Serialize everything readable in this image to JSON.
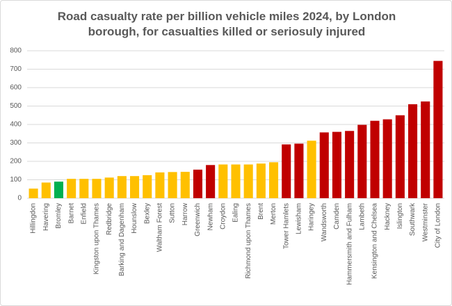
{
  "chart_data": {
    "type": "bar",
    "title": "Road casualty rate per billion vehicle miles 2024, by London borough, for casualties killed or seriosuly injured",
    "categories": [
      "Hillingdon",
      "Havering",
      "Bromley",
      "Barnet",
      "Enfield",
      "Kingston upon Thames",
      "Redbridge",
      "Barking and Dagenham",
      "Hounslow",
      "Bexley",
      "Waltham Forest",
      "Sutton",
      "Harrow",
      "Greenwich",
      "Newham",
      "Croydon",
      "Ealing",
      "Richmond upon Thames",
      "Brent",
      "Merton",
      "Tower Hamlets",
      "Lewisham",
      "Haringey",
      "Wandsworth",
      "Camden",
      "Hammersmith and Fulham",
      "Lambeth",
      "Kensington and Chelsea",
      "Hackney",
      "Islington",
      "Southwark",
      "Westminster",
      "City of London"
    ],
    "values": [
      52,
      85,
      90,
      105,
      105,
      105,
      112,
      120,
      120,
      125,
      140,
      142,
      143,
      155,
      180,
      183,
      183,
      183,
      188,
      195,
      292,
      296,
      312,
      357,
      360,
      365,
      398,
      420,
      428,
      450,
      510,
      525,
      745
    ],
    "colors": [
      "#ffc000",
      "#ffc000",
      "#00b050",
      "#ffc000",
      "#ffc000",
      "#ffc000",
      "#ffc000",
      "#ffc000",
      "#ffc000",
      "#ffc000",
      "#ffc000",
      "#ffc000",
      "#ffc000",
      "#c00000",
      "#c00000",
      "#ffc000",
      "#ffc000",
      "#ffc000",
      "#ffc000",
      "#ffc000",
      "#c00000",
      "#c00000",
      "#ffc000",
      "#c00000",
      "#c00000",
      "#c00000",
      "#c00000",
      "#c00000",
      "#c00000",
      "#c00000",
      "#c00000",
      "#c00000",
      "#c00000"
    ],
    "ylim": [
      0,
      800
    ],
    "yticks": [
      0,
      100,
      200,
      300,
      400,
      500,
      600,
      700,
      800
    ],
    "grid": true
  }
}
